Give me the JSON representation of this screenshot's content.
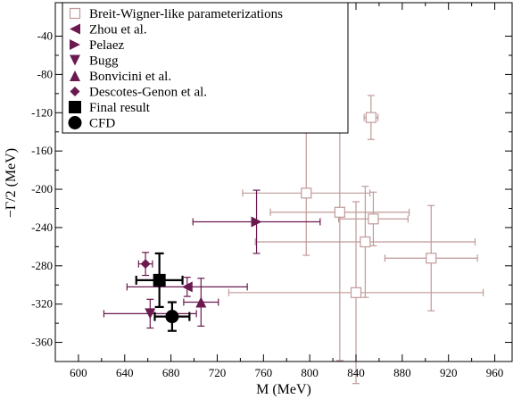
{
  "chart_data": {
    "type": "scatter",
    "title": "",
    "xlabel": "M (MeV)",
    "ylabel": "−Γ/2 (MeV)",
    "xlim": [
      580,
      975
    ],
    "ylim": [
      -380,
      -5
    ],
    "xticks": [
      600,
      640,
      680,
      720,
      760,
      800,
      840,
      880,
      920,
      960
    ],
    "yticks": [
      -40,
      -80,
      -120,
      -160,
      -200,
      -240,
      -280,
      -320,
      -360
    ],
    "grid": false,
    "legend_position": "top-left",
    "colors": {
      "breit_wigner": "#c09a9a",
      "purple": "#6b1a50",
      "black": "#000000"
    },
    "series": [
      {
        "name": "Breit-Wigner-like parameterizations",
        "marker": "open-square",
        "color": "#c09a9a",
        "points": [
          {
            "x": 853,
            "y": -125,
            "xerr": 6,
            "yerr": 23
          },
          {
            "x": 797,
            "y": -204,
            "xerr": 55,
            "yerr": 65
          },
          {
            "x": 826,
            "y": -224,
            "xerr": 60,
            "yerr": 155
          },
          {
            "x": 855,
            "y": -231,
            "xerr": 30,
            "yerr": 28
          },
          {
            "x": 848,
            "y": -255,
            "xerr": 95,
            "yerr": 58
          },
          {
            "x": 905,
            "y": -272,
            "xerr": 40,
            "yerr": 55
          },
          {
            "x": 840,
            "y": -308,
            "xerr": 110,
            "yerr": 95
          }
        ]
      },
      {
        "name": "Zhou et al.",
        "marker": "triangle-left",
        "color": "#6b1a50",
        "points": [
          {
            "x": 694,
            "y": -302,
            "xerr": 52,
            "yerr": 10
          }
        ]
      },
      {
        "name": "Pelaez",
        "marker": "triangle-right",
        "color": "#6b1a50",
        "points": [
          {
            "x": 754,
            "y": -234,
            "xerr": 55,
            "yerr": 33
          }
        ]
      },
      {
        "name": "Bugg",
        "marker": "triangle-down",
        "color": "#6b1a50",
        "points": [
          {
            "x": 662,
            "y": -330,
            "xerr": 40,
            "yerr": 15
          }
        ]
      },
      {
        "name": "Bonvicini et al.",
        "marker": "triangle-up",
        "color": "#6b1a50",
        "points": [
          {
            "x": 706,
            "y": -318,
            "xerr": 15,
            "yerr": 25
          }
        ]
      },
      {
        "name": "Descotes-Genon et al.",
        "marker": "diamond",
        "color": "#6b1a50",
        "points": [
          {
            "x": 658,
            "y": -278,
            "xerr": 6,
            "yerr": 12
          }
        ]
      },
      {
        "name": "Final result",
        "marker": "filled-square",
        "color": "#000000",
        "points": [
          {
            "x": 670,
            "y": -295,
            "xerr": 20,
            "yerr": 28
          }
        ]
      },
      {
        "name": "CFD",
        "marker": "filled-circle",
        "color": "#000000",
        "points": [
          {
            "x": 681,
            "y": -333,
            "xerr": 15,
            "yerr": 15
          }
        ]
      }
    ]
  }
}
